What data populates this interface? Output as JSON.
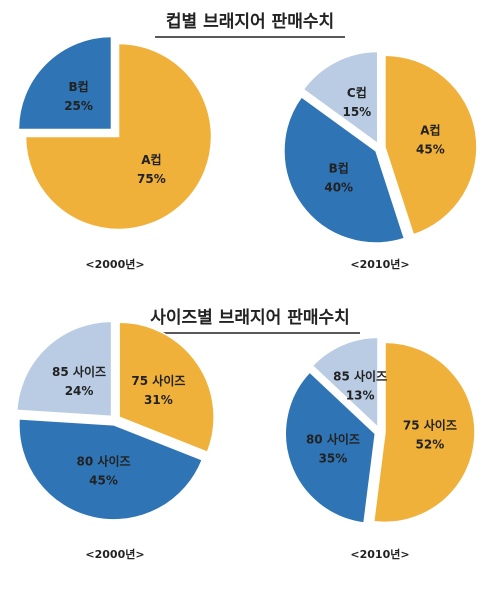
{
  "headings": [
    "컵별 브래지어 판매수치",
    "사이즈별 브래지어 판매수치"
  ],
  "chart_data": [
    {
      "type": "pie",
      "subtitle": "<2000년>",
      "categories": [
        "A컵",
        "B컵"
      ],
      "values": [
        75,
        25
      ],
      "value_labels": [
        "75%",
        "25%"
      ],
      "colors": [
        "#f0b13a",
        "#2f74b5"
      ]
    },
    {
      "type": "pie",
      "subtitle": "<2010년>",
      "categories": [
        "A컵",
        "B컵",
        "C컵"
      ],
      "values": [
        45,
        40,
        15
      ],
      "value_labels": [
        "45%",
        "40%",
        "15%"
      ],
      "colors": [
        "#f0b13a",
        "#2f74b5",
        "#b9cce4"
      ]
    },
    {
      "type": "pie",
      "subtitle": "<2000년>",
      "categories": [
        "75 사이즈",
        "80 사이즈",
        "85 사이즈"
      ],
      "values": [
        31,
        45,
        24
      ],
      "value_labels": [
        "31%",
        "45%",
        "24%"
      ],
      "colors": [
        "#f0b13a",
        "#2f74b5",
        "#b9cce4"
      ]
    },
    {
      "type": "pie",
      "subtitle": "<2010년>",
      "categories": [
        "75 사이즈",
        "80 사이즈",
        "85 사이즈"
      ],
      "values": [
        52,
        35,
        13
      ],
      "value_labels": [
        "52%",
        "35%",
        "13%"
      ],
      "colors": [
        "#f0b13a",
        "#2f74b5",
        "#b9cce4"
      ]
    }
  ]
}
